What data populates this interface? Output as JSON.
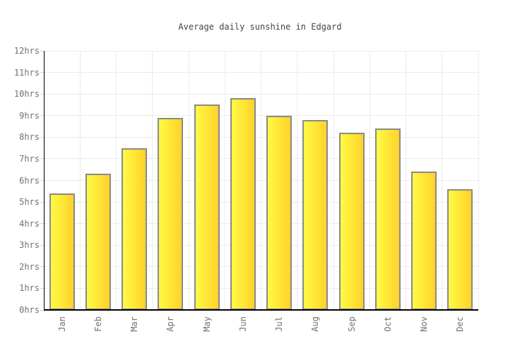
{
  "title": "Average daily sunshine in Edgard",
  "chart_data": {
    "type": "bar",
    "title": "Average daily sunshine in Edgard",
    "categories": [
      "Jan",
      "Feb",
      "Mar",
      "Apr",
      "May",
      "Jun",
      "Jul",
      "Aug",
      "Sep",
      "Oct",
      "Nov",
      "Dec"
    ],
    "values": [
      5.4,
      6.3,
      7.5,
      8.9,
      9.5,
      9.8,
      9.0,
      8.8,
      8.2,
      8.4,
      6.4,
      5.6
    ],
    "series_name": "Average daily sunshine (hrs)",
    "xlabel": "",
    "ylabel": "",
    "ylim": [
      0,
      12
    ],
    "ytick_step": 1,
    "ytick_labels": [
      "0hrs",
      "1hrs",
      "2hrs",
      "3hrs",
      "4hrs",
      "5hrs",
      "6hrs",
      "7hrs",
      "8hrs",
      "9hrs",
      "10hrs",
      "11hrs",
      "12hrs"
    ],
    "grid": true,
    "legend": false,
    "bar_unit": "hrs"
  },
  "colors": {
    "background": "#ffffff",
    "title_text": "#444444",
    "axis_line": "#000000",
    "grid_line": "#ebebeb",
    "tick_label": "#707070",
    "bar_border": "#8a8a8a",
    "bar_gradient_left": "#fff945",
    "bar_gradient_right": "#ffd22b"
  }
}
